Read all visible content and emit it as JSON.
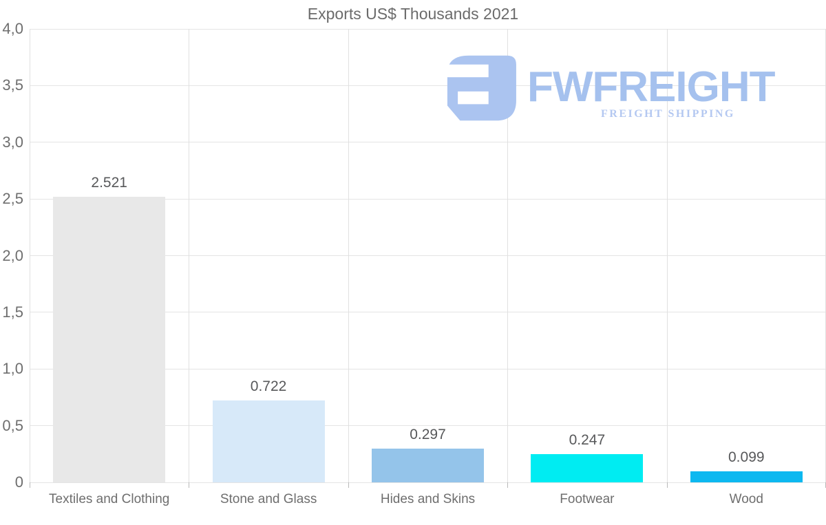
{
  "chart_data": {
    "type": "bar",
    "title": "Exports US$ Thousands 2021",
    "categories": [
      "Textiles and Clothing",
      "Stone and Glass",
      "Hides and Skins",
      "Footwear",
      "Wood"
    ],
    "values": [
      2.521,
      0.722,
      0.297,
      0.247,
      0.099
    ],
    "value_labels": [
      "2.521",
      "0.722",
      "0.297",
      "0.247",
      "0.099"
    ],
    "bar_colors": [
      "#e8e8e8",
      "#d7e9f9",
      "#94c4ea",
      "#00ecf2",
      "#0cb8f0"
    ],
    "y_ticks": [
      {
        "label": "4,0",
        "value": 4.0
      },
      {
        "label": "3,5",
        "value": 3.5
      },
      {
        "label": "3,0",
        "value": 3.0
      },
      {
        "label": "2,5",
        "value": 2.5
      },
      {
        "label": "2,0",
        "value": 2.0
      },
      {
        "label": "1,5",
        "value": 1.5
      },
      {
        "label": "1,0",
        "value": 1.0
      },
      {
        "label": "0,5",
        "value": 0.5
      },
      {
        "label": "0",
        "value": 0.0
      }
    ],
    "ylim": [
      0,
      4
    ],
    "xlabel": "",
    "ylabel": "",
    "grid": "horizontal-and-vertical",
    "legend": "none"
  },
  "logo": {
    "brand": "FWFREIGHT",
    "tagline": "FREIGHT SHIPPING",
    "icon": "fwfreight-logo-icon",
    "icon_color": "#abc4f0",
    "brand_color": "#a5c1ee",
    "tagline_color": "#b4c8f1"
  },
  "colors": {
    "background": "#ffffff",
    "title_text": "#6b6b6b",
    "axis_text": "#6e6e6e",
    "value_text": "#57585a",
    "gridline": "#e4e4e4"
  }
}
